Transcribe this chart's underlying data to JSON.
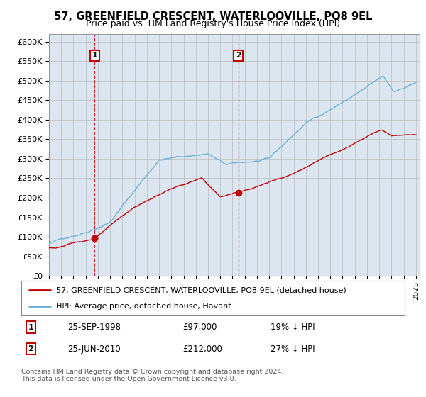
{
  "title": "57, GREENFIELD CRESCENT, WATERLOOVILLE, PO8 9EL",
  "subtitle": "Price paid vs. HM Land Registry's House Price Index (HPI)",
  "legend_line1": "57, GREENFIELD CRESCENT, WATERLOOVILLE, PO8 9EL (detached house)",
  "legend_line2": "HPI: Average price, detached house, Havant",
  "annotation1_date": "25-SEP-1998",
  "annotation1_price": "£97,000",
  "annotation1_hpi": "19% ↓ HPI",
  "annotation2_date": "25-JUN-2010",
  "annotation2_price": "£212,000",
  "annotation2_hpi": "27% ↓ HPI",
  "footer": "Contains HM Land Registry data © Crown copyright and database right 2024.\nThis data is licensed under the Open Government Licence v3.0.",
  "sale1_year": 1998.73,
  "sale1_value": 97000,
  "sale2_year": 2010.48,
  "sale2_value": 212000,
  "hpi_color": "#6baed6",
  "price_color": "#c00000",
  "bg_color": "#dce6f1",
  "grid_color": "#bbbbbb",
  "annotation_box_color": "#c00000",
  "ylim_max": 620000,
  "ylim_min": 0
}
